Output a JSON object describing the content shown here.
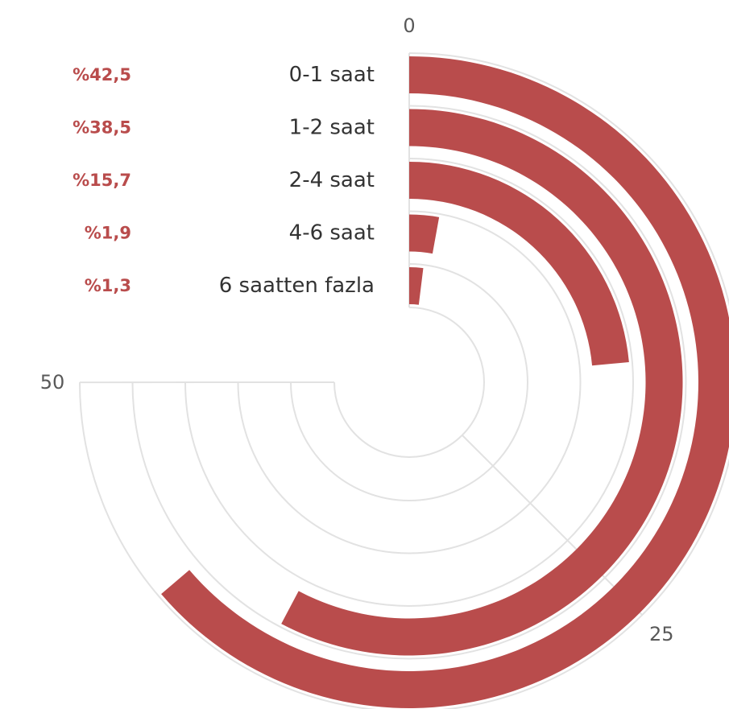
{
  "chart_data": {
    "type": "radial-bar",
    "categories": [
      "0-1 saat",
      "1-2 saat",
      "2-4 saat",
      "4-6 saat",
      "6 saatten fazla"
    ],
    "values": [
      42.5,
      38.5,
      15.7,
      1.9,
      1.3
    ],
    "value_labels": [
      "%42,5",
      "%38,5",
      "%15,7",
      "%1,9",
      "%1,3"
    ],
    "angular_axis": {
      "min": 0,
      "max": 66.67,
      "ticks": [
        0,
        25,
        50
      ],
      "tick_labels": [
        "0",
        "25",
        "50"
      ],
      "direction": "clockwise",
      "start": "top"
    },
    "title": "",
    "grid": true,
    "colors": {
      "bar": "#b94c4c",
      "value_label": "#b94c4c",
      "grid": "#e2e2e2"
    }
  }
}
